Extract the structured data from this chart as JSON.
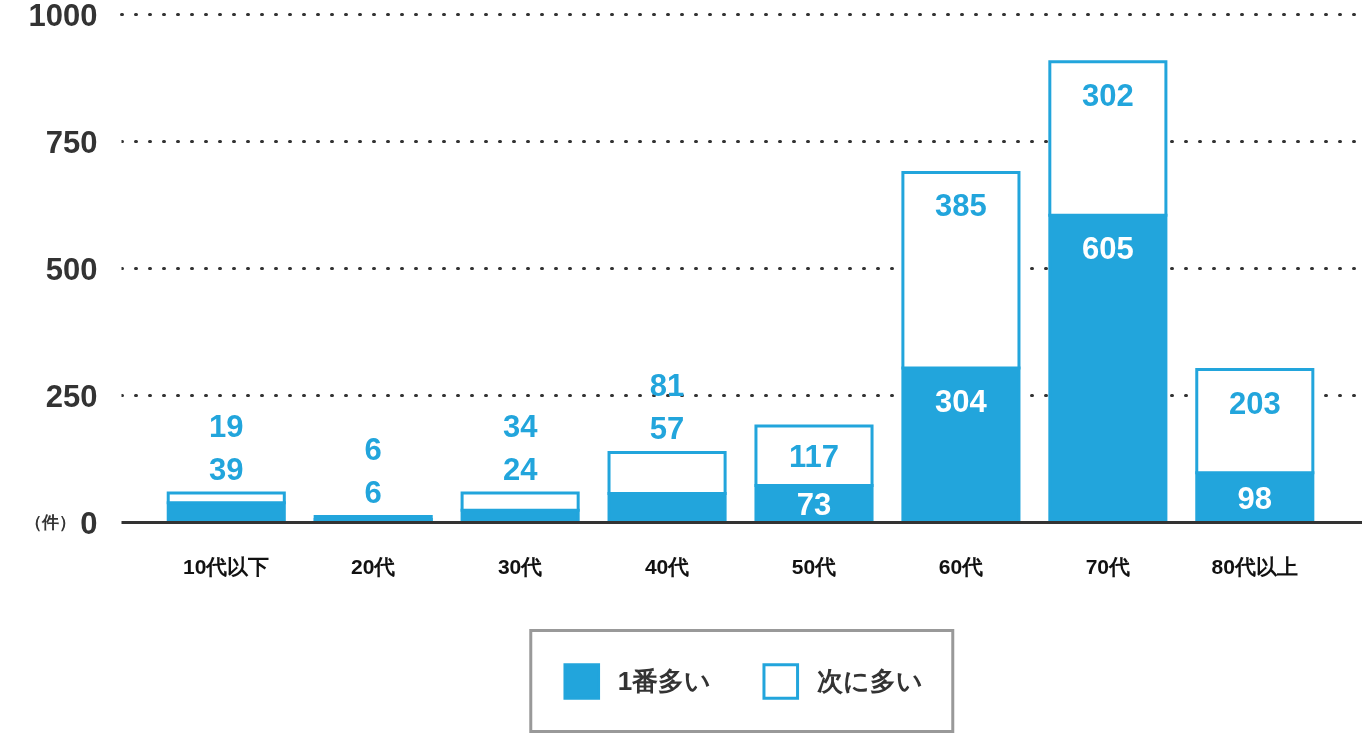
{
  "chart_data": {
    "type": "bar",
    "stacked": true,
    "ylabel": "（件）",
    "categories": [
      "10代以下",
      "20代",
      "30代",
      "40代",
      "50代",
      "60代",
      "70代",
      "80代以上"
    ],
    "series": [
      {
        "name": "1番多い",
        "color": "#22a5dc",
        "values": [
          39,
          6,
          24,
          57,
          73,
          304,
          605,
          98
        ]
      },
      {
        "name": "次に多い",
        "color": "#ffffff",
        "values": [
          19,
          6,
          34,
          81,
          117,
          385,
          302,
          203
        ]
      }
    ],
    "ylim": [
      0,
      1000
    ],
    "yticks": [
      0,
      250,
      500,
      750,
      1000
    ],
    "grid": "y",
    "legend": "bottom",
    "data_labels": true
  }
}
